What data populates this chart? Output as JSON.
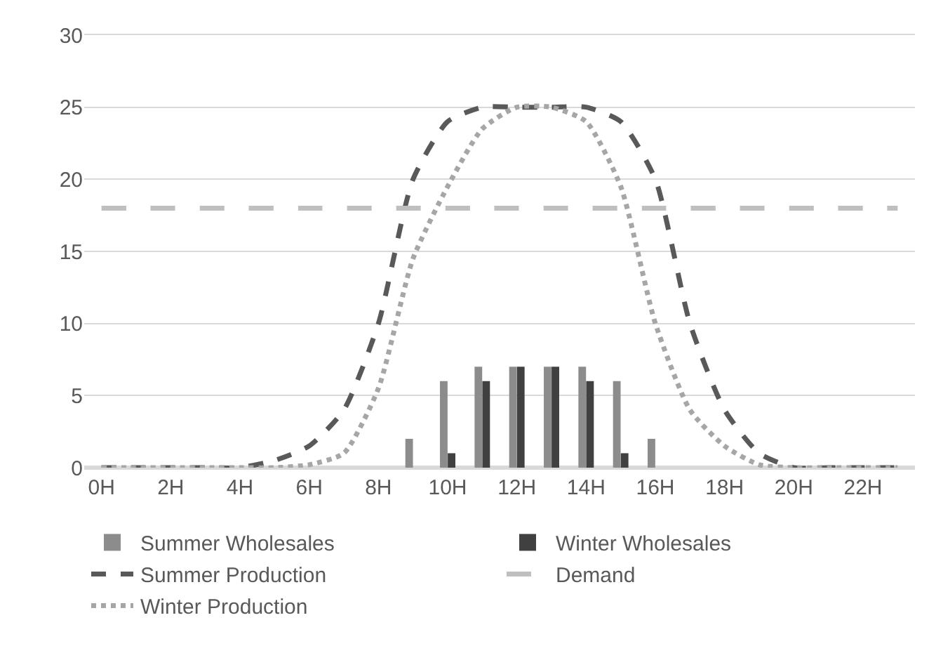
{
  "chart_data": {
    "type": "bar",
    "categories": [
      "0H",
      null,
      "2H",
      null,
      "4H",
      null,
      "6H",
      null,
      "8H",
      null,
      "10H",
      null,
      "12H",
      null,
      "14H",
      null,
      "16H",
      null,
      "18H",
      null,
      "20H",
      null,
      "22H",
      null
    ],
    "ylim": [
      0,
      30
    ],
    "yticks": [
      0,
      5,
      10,
      15,
      20,
      25,
      30
    ],
    "grid": "y",
    "legend": "bottom",
    "marker": "none",
    "series": [
      {
        "name": "Summer Wholesales",
        "color": "#8c8c8c",
        "values": [
          0,
          0,
          0,
          0,
          0,
          0,
          0,
          0,
          0,
          2,
          6,
          7,
          7,
          7,
          7,
          6,
          2,
          0,
          0,
          0,
          0,
          0,
          0,
          0
        ]
      },
      {
        "name": "Winter Wholesales",
        "color": "#404040",
        "values": [
          0,
          0,
          0,
          0,
          0,
          0,
          0,
          0,
          0,
          0,
          1,
          6,
          7,
          7,
          6,
          1,
          0,
          0,
          0,
          0,
          0,
          0,
          0,
          0
        ]
      },
      {
        "name": "Summer Production",
        "type": "line",
        "line_style": "dashed",
        "color": "#595959",
        "values": [
          0,
          0,
          0,
          0,
          0,
          0.5,
          1.5,
          4,
          10,
          20,
          24,
          25,
          25,
          25,
          25,
          24,
          20,
          10,
          4,
          1,
          0,
          0,
          0,
          0
        ]
      },
      {
        "name": "Demand",
        "type": "line",
        "line_style": "longdash",
        "color": "#bfbfbf",
        "values": [
          18,
          18,
          18,
          18,
          18,
          18,
          18,
          18,
          18,
          18,
          18,
          18,
          18,
          18,
          18,
          18,
          18,
          18,
          18,
          18,
          18,
          18,
          18,
          18
        ]
      },
      {
        "name": "Winter Production",
        "type": "line",
        "line_style": "dotted",
        "color": "#a6a6a6",
        "values": [
          0,
          0,
          0,
          0,
          0,
          0,
          0.2,
          1,
          5.5,
          14.5,
          19.5,
          23.5,
          25,
          25,
          24,
          19.5,
          10,
          4,
          1.5,
          0.2,
          0,
          0,
          0,
          0
        ]
      }
    ]
  }
}
